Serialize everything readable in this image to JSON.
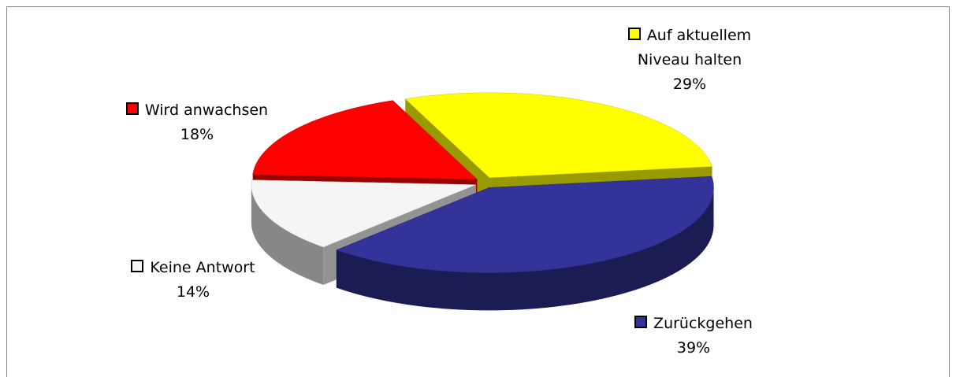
{
  "chart_data": {
    "type": "pie3d",
    "categories": [
      "Auf aktuellem Niveau halten",
      "Zurückgehen",
      "Keine Antwort",
      "Wird anwachsen"
    ],
    "values": [
      29,
      39,
      14,
      18
    ],
    "value_labels": [
      "29%",
      "39%",
      "14%",
      "18%"
    ],
    "colors": [
      "#ffff00",
      "#333399",
      "#f5f5f5",
      "#ff0000"
    ]
  }
}
